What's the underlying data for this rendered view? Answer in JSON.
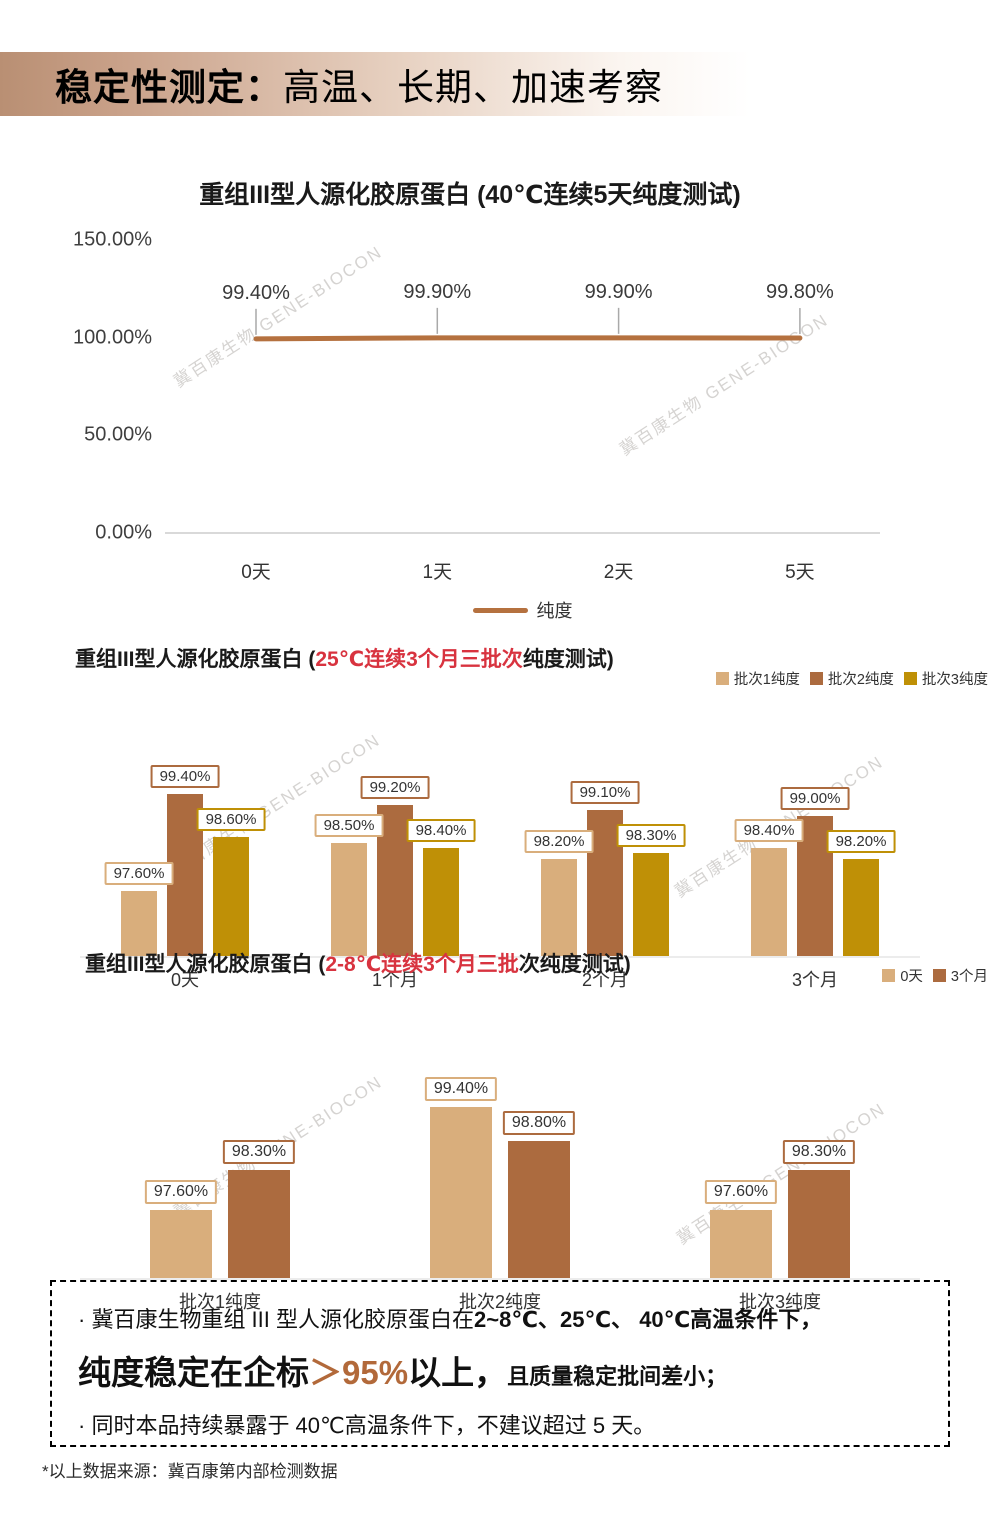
{
  "page": {
    "header": {
      "title_bold": "稳定性测定：",
      "title_rest": "高温、长期、加速考察"
    },
    "watermark_text": "冀百康生物 GENE-BIOCON",
    "summary_box": {
      "line1_prefix": "· 冀百康生物重组 III 型人源化胶原蛋白在",
      "line1_bold": "2~8℃、25℃、 40℃高温条件下，",
      "line2_big_prefix": "纯度稳定在企标",
      "line2_highlight": "＞95%",
      "line2_big_suffix": "以上，",
      "line2_small": "且质量稳定批间差小；",
      "line3": "· 同时本品持续暴露于 40℃高温条件下，不建议超过 5 天。"
    },
    "footnote": "*以上数据来源：冀百康第内部检测数据"
  },
  "colors": {
    "accent_red": "#d8333f",
    "highlight_orange": "#b2693a",
    "line_brown": "#b5713f",
    "batch1_tan": "#d9ae7c",
    "batch2_brown": "#ac6b3f",
    "batch3_gold": "#bf9006",
    "header_gradient_left": "#b98f73",
    "axis_gray": "#d9d9d9"
  },
  "chart_data": [
    {
      "type": "line",
      "title": "重组III型人源化胶原蛋白 (40℃连续5天纯度测试)",
      "x": [
        "0天",
        "1天",
        "2天",
        "5天"
      ],
      "series": [
        {
          "name": "纯度",
          "values": [
            99.4,
            99.9,
            99.9,
            99.8
          ]
        }
      ],
      "point_labels": [
        "99.40%",
        "99.90%",
        "99.90%",
        "99.80%"
      ],
      "y_ticks": [
        "150.00%",
        "100.00%",
        "50.00%",
        "0.00%"
      ],
      "ylim": [
        0,
        150
      ],
      "grid": false,
      "legend_position": "bottom",
      "line_color": "#b5713f"
    },
    {
      "type": "bar",
      "title_parts": {
        "prefix": "重组III型人源化胶原蛋白 (",
        "highlight": "25℃连续3个月三批次",
        "suffix": "纯度测试)"
      },
      "categories": [
        "0天",
        "1个月",
        "2个月",
        "3个月"
      ],
      "series": [
        {
          "name": "批次1纯度",
          "color": "#d9ae7c",
          "values": [
            97.6,
            98.5,
            98.2,
            98.4
          ]
        },
        {
          "name": "批次2纯度",
          "color": "#ac6b3f",
          "values": [
            99.4,
            99.2,
            99.1,
            99.0
          ]
        },
        {
          "name": "批次3纯度",
          "color": "#bf9006",
          "values": [
            98.6,
            98.4,
            98.3,
            98.2
          ]
        }
      ],
      "value_axis_min": 96.4,
      "data_labels": "on",
      "grid": false,
      "legend_position": "top-right"
    },
    {
      "type": "bar",
      "title_parts": {
        "prefix": "重组III型人源化胶原蛋白 (",
        "highlight": "2-8℃连续3个月三批",
        "suffix": "次纯度测试)"
      },
      "categories": [
        "批次1纯度",
        "批次2纯度",
        "批次3纯度"
      ],
      "series": [
        {
          "name": "0天",
          "color": "#d9ae7c",
          "values": [
            97.6,
            99.4,
            97.6
          ]
        },
        {
          "name": "3个月",
          "color": "#ac6b3f",
          "values": [
            98.3,
            98.8,
            98.3
          ]
        }
      ],
      "value_axis_min": 96.4,
      "data_labels": "on",
      "grid": false,
      "legend_position": "top-right"
    }
  ]
}
